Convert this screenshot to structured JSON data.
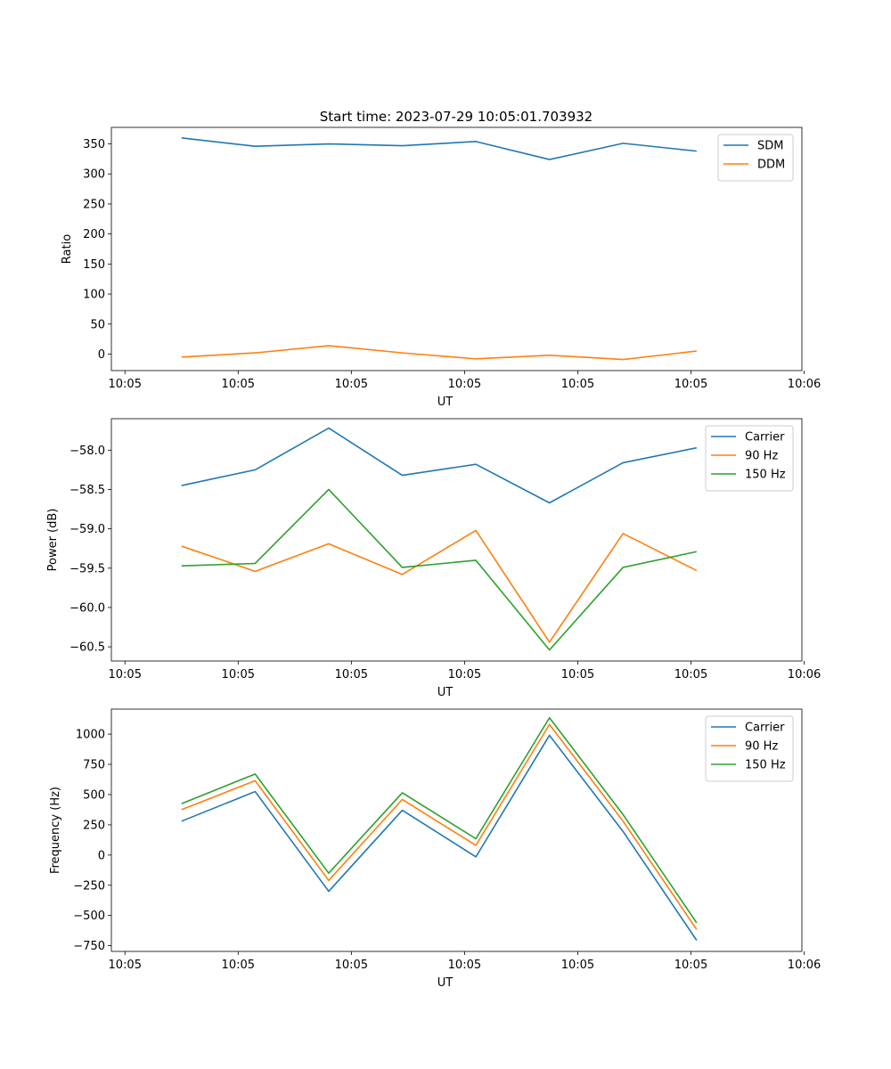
{
  "figure_title": "Start time: 2023-07-29 10:05:01.703932",
  "colors": {
    "blue": "#1f77b4",
    "orange": "#ff7f0e",
    "green": "#2ca02c",
    "axis": "#000000",
    "legend_border": "#cccccc"
  },
  "chart_data": [
    {
      "type": "line",
      "title": "Start time: 2023-07-29 10:05:01.703932",
      "xlabel": "UT",
      "ylabel": "Ratio",
      "x": [
        0.5,
        1.15,
        1.8,
        2.45,
        3.1,
        3.75,
        4.4,
        5.05
      ],
      "xlim": [
        -0.12,
        5.98
      ],
      "xticks": [
        0,
        1,
        2,
        3,
        4,
        5,
        6
      ],
      "xticklabels": [
        "10:05",
        "10:05",
        "10:05",
        "10:05",
        "10:05",
        "10:05",
        "10:06"
      ],
      "ylim": [
        -27.5,
        377.5
      ],
      "yticks": [
        0,
        50,
        100,
        150,
        200,
        250,
        300,
        350
      ],
      "yticklabels": [
        "0",
        "50",
        "100",
        "150",
        "200",
        "250",
        "300",
        "350"
      ],
      "legend_position": "top-right",
      "series": [
        {
          "name": "SDM",
          "color": "#1f77b4",
          "values": [
            360,
            346,
            350,
            347,
            354,
            324,
            351,
            338
          ]
        },
        {
          "name": "DDM",
          "color": "#ff7f0e",
          "values": [
            -5,
            2,
            14,
            2,
            -8,
            -2,
            -9,
            5
          ]
        }
      ]
    },
    {
      "type": "line",
      "xlabel": "UT",
      "ylabel": "Power (dB)",
      "x": [
        0.5,
        1.15,
        1.8,
        2.45,
        3.1,
        3.75,
        4.4,
        5.05
      ],
      "xlim": [
        -0.12,
        5.98
      ],
      "xticks": [
        0,
        1,
        2,
        3,
        4,
        5,
        6
      ],
      "xticklabels": [
        "10:05",
        "10:05",
        "10:05",
        "10:05",
        "10:05",
        "10:05",
        "10:06"
      ],
      "ylim": [
        -60.68,
        -57.6
      ],
      "yticks": [
        -60.5,
        -60.0,
        -59.5,
        -59.0,
        -58.5,
        -58.0
      ],
      "yticklabels": [
        "−60.5",
        "−60.0",
        "−59.5",
        "−59.0",
        "−58.5",
        "−58.0"
      ],
      "legend_position": "top-right",
      "series": [
        {
          "name": "Carrier",
          "color": "#1f77b4",
          "values": [
            -58.45,
            -58.25,
            -57.72,
            -58.32,
            -58.18,
            -58.67,
            -58.16,
            -57.97
          ]
        },
        {
          "name": "90 Hz",
          "color": "#ff7f0e",
          "values": [
            -59.22,
            -59.54,
            -59.19,
            -59.58,
            -59.02,
            -60.44,
            -59.06,
            -59.53
          ]
        },
        {
          "name": "150 Hz",
          "color": "#2ca02c",
          "values": [
            -59.47,
            -59.44,
            -58.5,
            -59.49,
            -59.4,
            -60.54,
            -59.49,
            -59.29
          ]
        }
      ]
    },
    {
      "type": "line",
      "xlabel": "UT",
      "ylabel": "Frequency (Hz)",
      "x": [
        0.5,
        1.15,
        1.8,
        2.45,
        3.1,
        3.75,
        4.4,
        5.05
      ],
      "xlim": [
        -0.12,
        5.98
      ],
      "xticks": [
        0,
        1,
        2,
        3,
        4,
        5,
        6
      ],
      "xticklabels": [
        "10:05",
        "10:05",
        "10:05",
        "10:05",
        "10:05",
        "10:05",
        "10:06"
      ],
      "ylim": [
        -797,
        1207
      ],
      "yticks": [
        -750,
        -500,
        -250,
        0,
        250,
        500,
        750,
        1000
      ],
      "yticklabels": [
        "−750",
        "−500",
        "−250",
        "0",
        "250",
        "500",
        "750",
        "1000"
      ],
      "legend_position": "top-right",
      "series": [
        {
          "name": "Carrier",
          "color": "#1f77b4",
          "values": [
            280,
            525,
            -300,
            370,
            -15,
            990,
            195,
            -705
          ]
        },
        {
          "name": "90 Hz",
          "color": "#ff7f0e",
          "values": [
            375,
            615,
            -210,
            460,
            80,
            1080,
            280,
            -615
          ]
        },
        {
          "name": "150 Hz",
          "color": "#2ca02c",
          "values": [
            425,
            670,
            -150,
            515,
            135,
            1135,
            335,
            -560
          ]
        }
      ]
    }
  ]
}
